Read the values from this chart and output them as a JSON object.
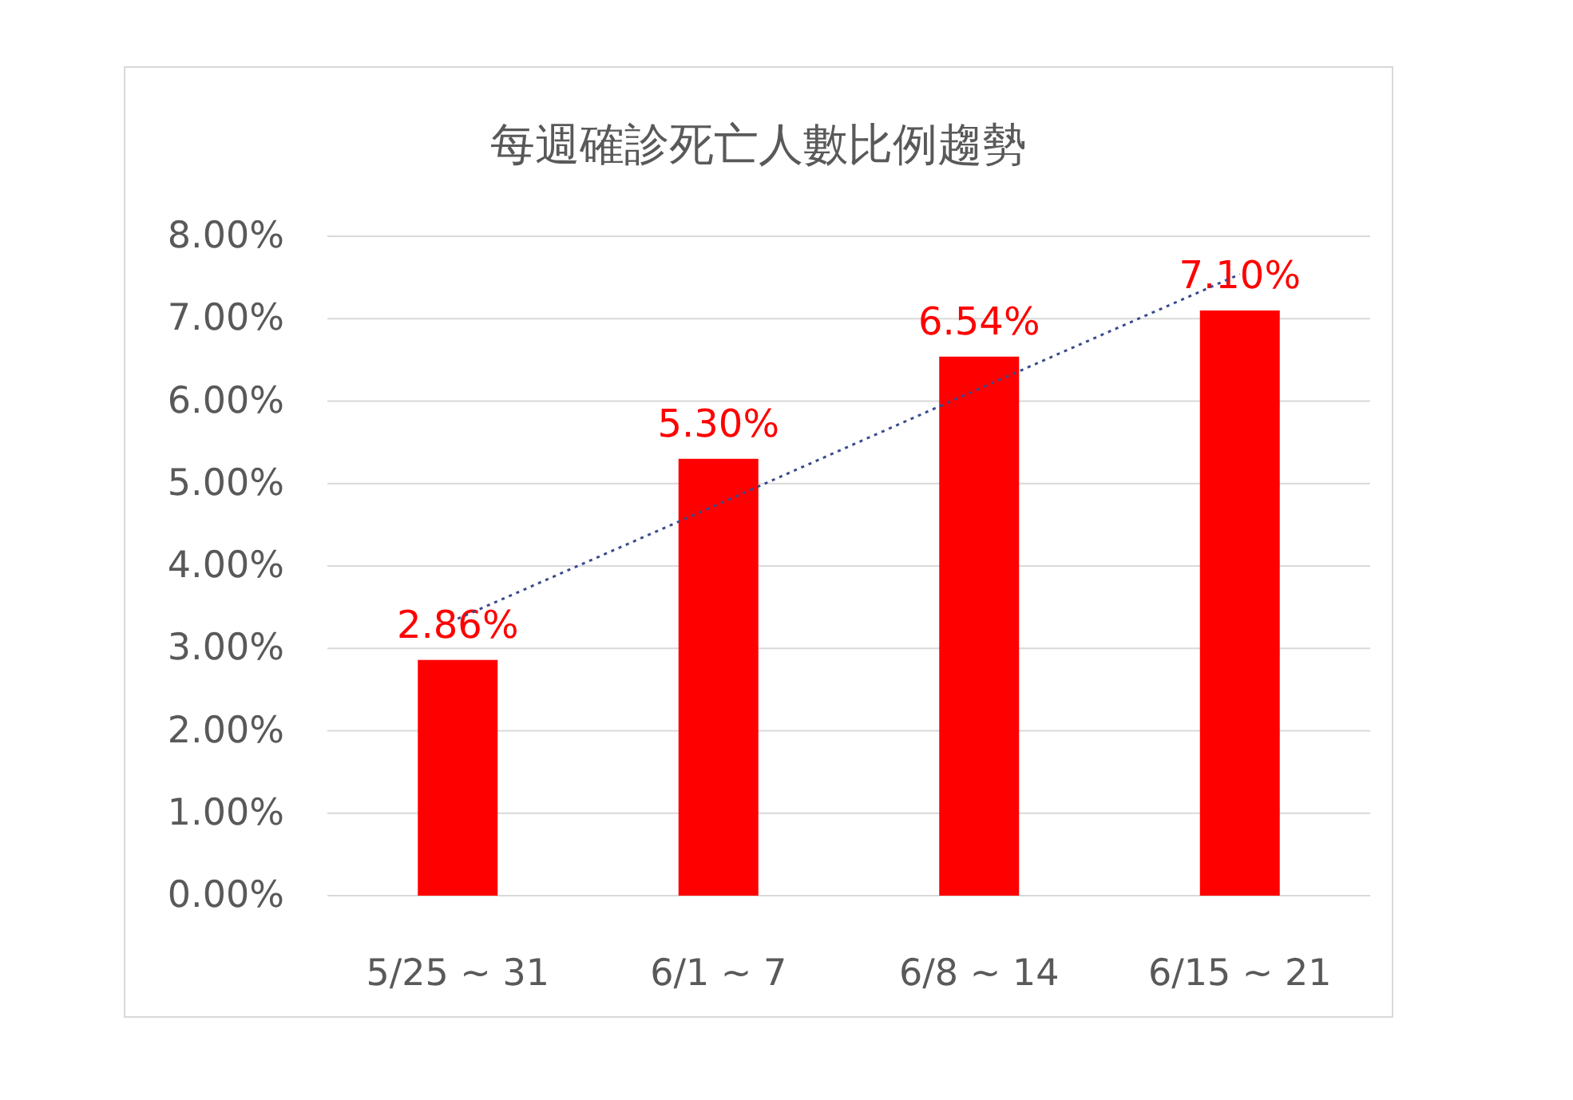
{
  "chart_data": {
    "type": "bar",
    "title": "每週確診死亡人數比例趨勢",
    "categories": [
      "5/25 ~ 31",
      "6/1 ~ 7",
      "6/8 ~ 14",
      "6/15 ~ 21"
    ],
    "series": [
      {
        "color": "#ff0000",
        "values": [
          2.86,
          5.3,
          6.54,
          7.1
        ],
        "value_labels": [
          "2.86%",
          "5.30%",
          "6.54%",
          "7.10%"
        ]
      },
      {
        "type": "line",
        "color": "#3a4a8c",
        "line_style": "dotted",
        "marker": "none",
        "values": [
          3.36,
          4.75,
          6.15,
          7.54
        ]
      }
    ],
    "ylim": [
      0,
      8
    ],
    "yticks": [
      {
        "value": 0,
        "label": "0.00%"
      },
      {
        "value": 1,
        "label": "1.00%"
      },
      {
        "value": 2,
        "label": "2.00%"
      },
      {
        "value": 3,
        "label": "3.00%"
      },
      {
        "value": 4,
        "label": "4.00%"
      },
      {
        "value": 5,
        "label": "5.00%"
      },
      {
        "value": 6,
        "label": "6.00%"
      },
      {
        "value": 7,
        "label": "7.00%"
      },
      {
        "value": 8,
        "label": "8.00%"
      }
    ],
    "grid": "y"
  }
}
